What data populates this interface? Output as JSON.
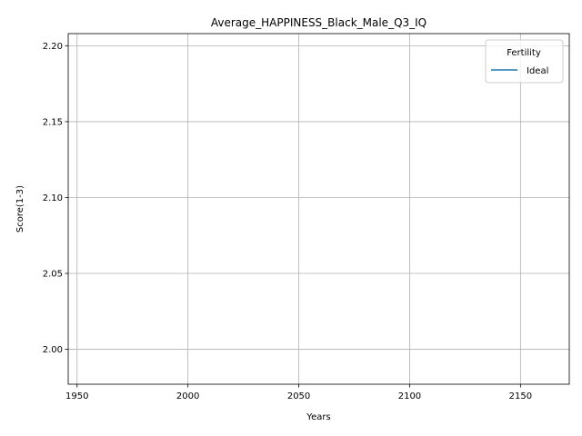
{
  "chart_data": {
    "type": "line",
    "title": "Average_HAPPINESS_Black_Male_Q3_IQ",
    "xlabel": "Years",
    "ylabel": "Score(1-3)",
    "xlim": [
      1946,
      2172
    ],
    "ylim": [
      1.977,
      2.208
    ],
    "x_ticks": [
      1950,
      2000,
      2050,
      2100,
      2150
    ],
    "y_ticks": [
      2.0,
      2.05,
      2.1,
      2.15,
      2.2
    ],
    "x_tick_labels": [
      "1950",
      "2000",
      "2050",
      "2100",
      "2150"
    ],
    "y_tick_labels": [
      "2.00",
      "2.05",
      "2.10",
      "2.15",
      "2.20"
    ],
    "grid": true,
    "legend": {
      "title": "Fertility",
      "placement": "top-right",
      "entries": [
        {
          "name": "Ideal",
          "color": "#1f77b4"
        }
      ]
    },
    "series": [
      {
        "name": "Ideal",
        "color": "#1f77b4",
        "x": [],
        "y": []
      }
    ]
  }
}
